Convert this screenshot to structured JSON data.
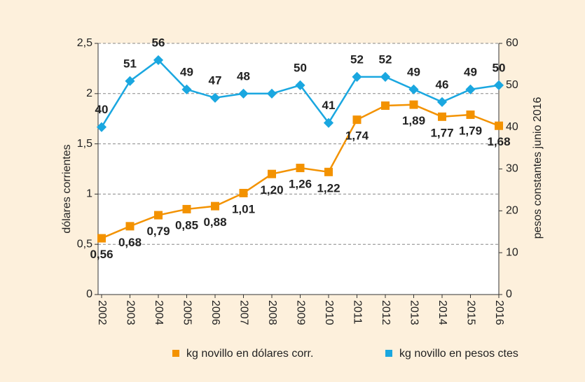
{
  "chart_data": {
    "type": "line",
    "categories": [
      "2002",
      "2003",
      "2004",
      "2005",
      "2006",
      "2007",
      "2008",
      "2009",
      "2010",
      "2011",
      "2012",
      "2013",
      "2014",
      "2015",
      "2016"
    ],
    "series": [
      {
        "name": "kg novillo en dólares corr.",
        "color": "#f39200",
        "axis": "y",
        "values": [
          0.56,
          0.68,
          0.79,
          0.85,
          0.88,
          1.01,
          1.2,
          1.26,
          1.22,
          1.74,
          1.88,
          1.89,
          1.77,
          1.79,
          1.68
        ],
        "value_labels": [
          "0,56",
          "0,68",
          "0,79",
          "0,85",
          "0,88",
          "1,01",
          "1,20",
          "1,26",
          "1,22",
          "1,74",
          null,
          "1,89",
          "1,77",
          "1,79",
          "1,68"
        ]
      },
      {
        "name": "kg novillo en pesos ctes",
        "color": "#1aa7e0",
        "axis": "y2",
        "values": [
          40,
          51,
          56,
          49,
          47,
          48,
          48,
          50,
          41,
          52,
          52,
          49,
          46,
          49,
          50
        ],
        "value_labels": [
          "40",
          "51",
          "56",
          "49",
          "47",
          "48",
          null,
          "50",
          "41",
          "52",
          "52",
          "49",
          "46",
          "49",
          "50"
        ]
      }
    ],
    "ylabel": "dólares corrientes",
    "y2label": "pesos constantes junio 2016",
    "ylim": [
      0,
      2.5
    ],
    "yticks": [
      0,
      {
        "value": 0.5,
        "label": "0,5"
      },
      1,
      {
        "value": 1.5,
        "label": "1,5"
      },
      2,
      {
        "value": 2.5,
        "label": "2,5"
      }
    ],
    "y2lim": [
      0,
      60
    ],
    "y2ticks": [
      0,
      10,
      20,
      30,
      40,
      50,
      60
    ],
    "grid": true,
    "legend": "bottom"
  }
}
